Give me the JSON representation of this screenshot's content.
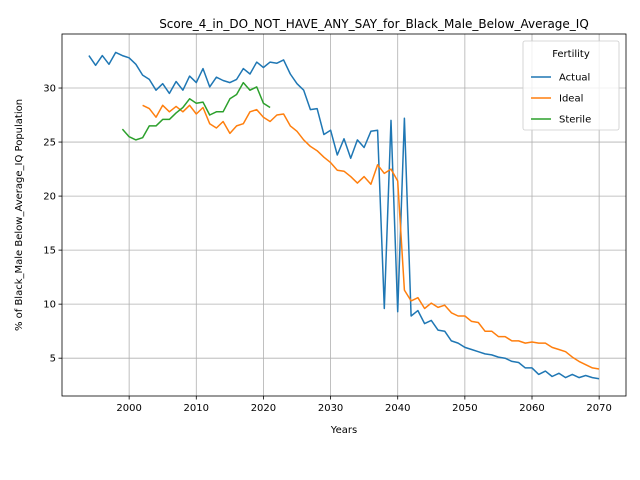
{
  "chart_data": {
    "type": "line",
    "title": "Score_4_in_DO_NOT_HAVE_ANY_SAY_for_Black_Male_Below_Average_IQ",
    "xlabel": "Years",
    "ylabel": "% of Black_Male Below_Average_IQ Population",
    "xlim": [
      1990,
      2074
    ],
    "ylim": [
      1.5,
      35
    ],
    "xticks": [
      2000,
      2010,
      2020,
      2030,
      2040,
      2050,
      2060,
      2070
    ],
    "yticks": [
      5,
      10,
      15,
      20,
      25,
      30
    ],
    "grid": true,
    "legend_title": "Fertility",
    "legend_position": "top-right",
    "series": [
      {
        "name": "Actual",
        "color": "#1f77b4",
        "x": [
          1994,
          1995,
          1996,
          1997,
          1998,
          1999,
          2000,
          2001,
          2002,
          2003,
          2004,
          2005,
          2006,
          2007,
          2008,
          2009,
          2010,
          2011,
          2012,
          2013,
          2014,
          2015,
          2016,
          2017,
          2018,
          2019,
          2020,
          2021,
          2022,
          2023,
          2024,
          2025,
          2026,
          2027,
          2028,
          2029,
          2030,
          2031,
          2032,
          2033,
          2034,
          2035,
          2036,
          2037,
          2038,
          2039,
          2040,
          2041,
          2042,
          2043,
          2044,
          2045,
          2046,
          2047,
          2048,
          2049,
          2050,
          2051,
          2052,
          2053,
          2054,
          2055,
          2056,
          2057,
          2058,
          2059,
          2060,
          2061,
          2062,
          2063,
          2064,
          2065,
          2066,
          2067,
          2068,
          2069,
          2070
        ],
        "values": [
          33.0,
          32.1,
          33.0,
          32.2,
          33.3,
          33.0,
          32.8,
          32.2,
          31.2,
          30.8,
          29.8,
          30.4,
          29.5,
          30.6,
          29.8,
          31.1,
          30.5,
          31.8,
          30.1,
          31.0,
          30.7,
          30.5,
          30.8,
          31.8,
          31.3,
          32.4,
          31.9,
          32.4,
          32.3,
          32.6,
          31.3,
          30.4,
          29.8,
          28.0,
          28.1,
          25.7,
          26.1,
          23.8,
          25.3,
          23.5,
          25.2,
          24.5,
          26.0,
          26.1,
          9.6,
          27.0,
          9.3,
          27.2,
          8.9,
          9.4,
          8.2,
          8.5,
          7.6,
          7.5,
          6.6,
          6.4,
          6.0,
          5.8,
          5.6,
          5.4,
          5.3,
          5.1,
          5.0,
          4.7,
          4.6,
          4.1,
          4.1,
          3.5,
          3.8,
          3.3,
          3.6,
          3.2,
          3.5,
          3.2,
          3.4,
          3.2,
          3.1
        ]
      },
      {
        "name": "Ideal",
        "color": "#ff7f0e",
        "x": [
          2002,
          2003,
          2004,
          2005,
          2006,
          2007,
          2008,
          2009,
          2010,
          2011,
          2012,
          2013,
          2014,
          2015,
          2016,
          2017,
          2018,
          2019,
          2020,
          2021,
          2022,
          2023,
          2024,
          2025,
          2026,
          2027,
          2028,
          2029,
          2030,
          2031,
          2032,
          2033,
          2034,
          2035,
          2036,
          2037,
          2038,
          2039,
          2040,
          2041,
          2042,
          2043,
          2044,
          2045,
          2046,
          2047,
          2048,
          2049,
          2050,
          2051,
          2052,
          2053,
          2054,
          2055,
          2056,
          2057,
          2058,
          2059,
          2060,
          2061,
          2062,
          2063,
          2064,
          2065,
          2066,
          2067,
          2068,
          2069,
          2070
        ],
        "values": [
          28.4,
          28.1,
          27.3,
          28.4,
          27.8,
          28.3,
          27.8,
          28.4,
          27.6,
          28.2,
          26.7,
          26.3,
          26.9,
          25.8,
          26.5,
          26.7,
          27.8,
          28.0,
          27.3,
          26.9,
          27.5,
          27.6,
          26.5,
          26.0,
          25.2,
          24.6,
          24.2,
          23.6,
          23.1,
          22.4,
          22.3,
          21.8,
          21.2,
          21.8,
          21.1,
          22.9,
          22.1,
          22.5,
          21.4,
          11.3,
          10.3,
          10.6,
          9.6,
          10.1,
          9.7,
          9.9,
          9.2,
          8.9,
          8.9,
          8.4,
          8.3,
          7.5,
          7.5,
          7.0,
          7.0,
          6.6,
          6.6,
          6.4,
          6.5,
          6.4,
          6.4,
          6.0,
          5.8,
          5.6,
          5.1,
          4.7,
          4.4,
          4.1,
          4.0
        ]
      },
      {
        "name": "Sterile",
        "color": "#2ca02c",
        "x": [
          1999,
          2000,
          2001,
          2002,
          2003,
          2004,
          2005,
          2006,
          2007,
          2008,
          2009,
          2010,
          2011,
          2012,
          2013,
          2014,
          2015,
          2016,
          2017,
          2018,
          2019,
          2020,
          2021
        ],
        "values": [
          26.2,
          25.5,
          25.2,
          25.4,
          26.5,
          26.5,
          27.1,
          27.1,
          27.7,
          28.2,
          29.0,
          28.6,
          28.7,
          27.5,
          27.8,
          27.8,
          29.0,
          29.4,
          30.5,
          29.8,
          30.1,
          28.6,
          28.2
        ]
      }
    ]
  }
}
